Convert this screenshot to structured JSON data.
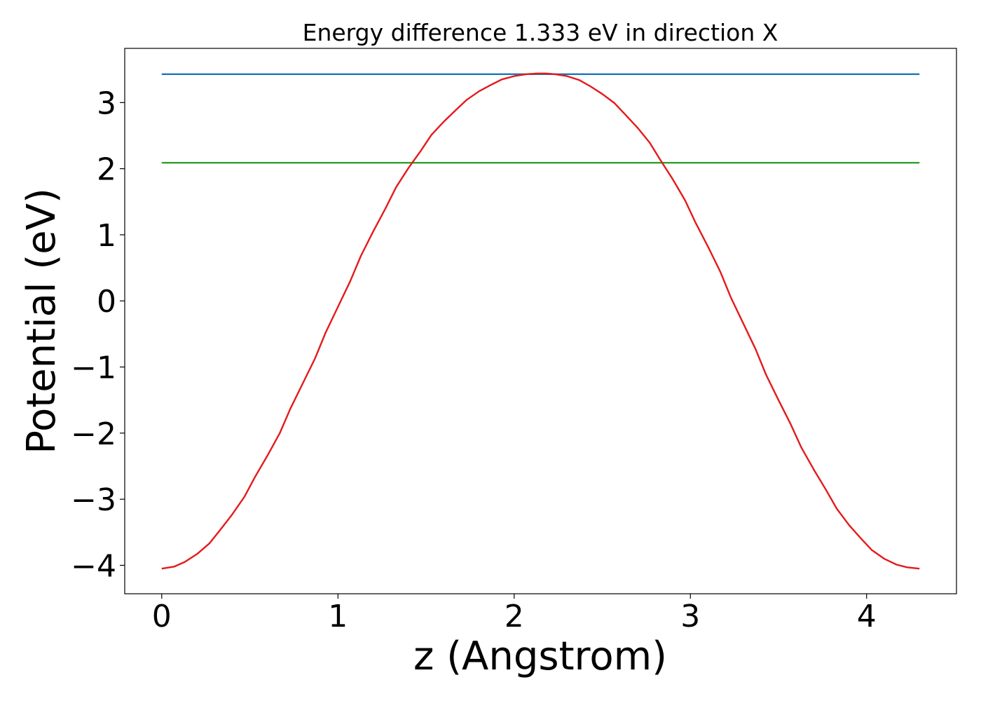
{
  "chart_data": {
    "type": "line",
    "title": "Energy difference 1.333 eV in direction X",
    "xlabel": "z (Angstrom)",
    "ylabel": "Potential (eV)",
    "xlim": [
      -0.21,
      4.51
    ],
    "ylim": [
      -4.43,
      3.82
    ],
    "xticks": [
      0,
      1,
      2,
      3,
      4
    ],
    "yticks": [
      -4,
      -3,
      -2,
      -1,
      0,
      1,
      2,
      3
    ],
    "xtick_labels": [
      "0",
      "1",
      "2",
      "3",
      "4"
    ],
    "ytick_labels": [
      "−4",
      "−3",
      "−2",
      "−1",
      "0",
      "1",
      "2",
      "3"
    ],
    "grid": false,
    "series": [
      {
        "color": "#1f77b4",
        "x": [
          0,
          4.3
        ],
        "y": [
          3.43,
          3.43
        ]
      },
      {
        "color": "#2ca02c",
        "x": [
          0,
          4.3
        ],
        "y": [
          2.09,
          2.09
        ]
      },
      {
        "color": "#e41a1c",
        "x": [
          0,
          0.07,
          0.13,
          0.2,
          0.27,
          0.33,
          0.4,
          0.47,
          0.53,
          0.6,
          0.67,
          0.73,
          0.8,
          0.87,
          0.93,
          1.0,
          1.07,
          1.13,
          1.2,
          1.27,
          1.33,
          1.4,
          1.47,
          1.53,
          1.6,
          1.67,
          1.73,
          1.8,
          1.87,
          1.93,
          2.0,
          2.07,
          2.13,
          2.18,
          2.23,
          2.3,
          2.37,
          2.43,
          2.5,
          2.57,
          2.63,
          2.7,
          2.77,
          2.83,
          2.9,
          2.97,
          3.03,
          3.1,
          3.17,
          3.23,
          3.3,
          3.37,
          3.43,
          3.5,
          3.57,
          3.63,
          3.7,
          3.77,
          3.83,
          3.9,
          3.97,
          4.03,
          4.1,
          4.17,
          4.23,
          4.3
        ],
        "y": [
          -4.05,
          -4.02,
          -3.95,
          -3.83,
          -3.67,
          -3.47,
          -3.23,
          -2.96,
          -2.66,
          -2.34,
          -2.0,
          -1.63,
          -1.25,
          -0.87,
          -0.48,
          -0.09,
          0.3,
          0.68,
          1.05,
          1.4,
          1.72,
          2.01,
          2.27,
          2.51,
          2.71,
          2.89,
          3.04,
          3.17,
          3.27,
          3.35,
          3.4,
          3.43,
          3.44,
          3.44,
          3.43,
          3.4,
          3.34,
          3.25,
          3.13,
          2.99,
          2.82,
          2.62,
          2.39,
          2.13,
          1.84,
          1.52,
          1.18,
          0.82,
          0.44,
          0.05,
          -0.34,
          -0.73,
          -1.12,
          -1.5,
          -1.87,
          -2.22,
          -2.55,
          -2.86,
          -3.14,
          -3.39,
          -3.6,
          -3.77,
          -3.9,
          -3.99,
          -4.03,
          -4.05
        ]
      }
    ]
  }
}
